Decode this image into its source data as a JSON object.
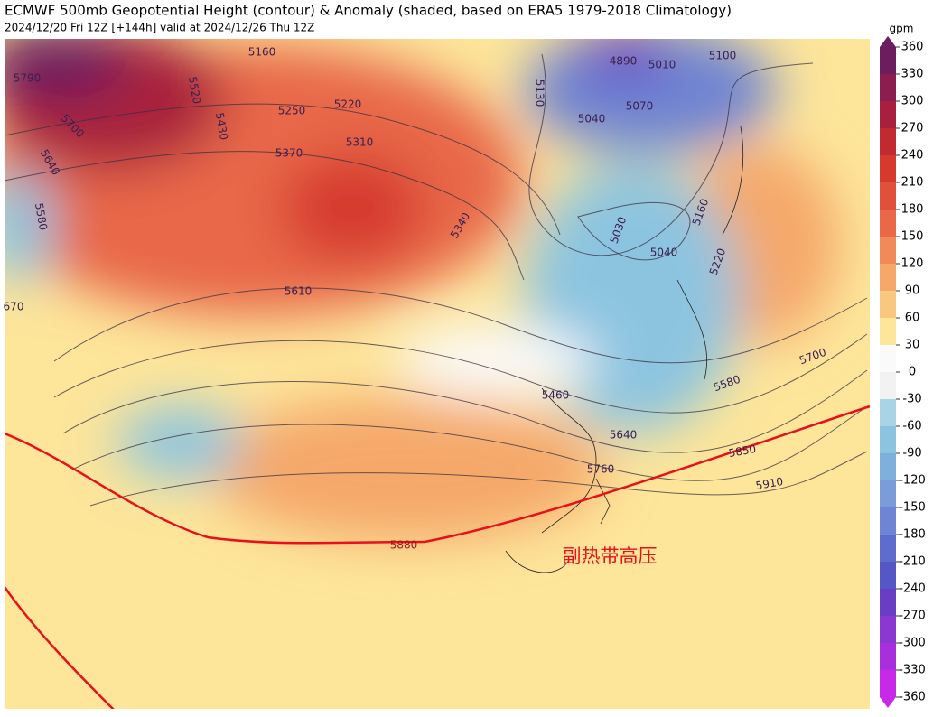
{
  "title": "ECMWF 500mb Geopotential Height (contour) & Anomaly (shaded, based on ERA5 1979-2018 Climatology)",
  "subtitle": "2024/12/20 Fri 12Z [+144h] valid at 2024/12/26 Thu 12Z",
  "colorbar": {
    "unit": "gpm",
    "lim": [
      -360,
      360
    ],
    "ticks": [
      360,
      330,
      300,
      270,
      240,
      210,
      180,
      150,
      120,
      90,
      60,
      30,
      0,
      -30,
      -60,
      -90,
      -120,
      -150,
      -180,
      -210,
      -240,
      -270,
      -300,
      -330,
      -360
    ],
    "colors": [
      "#6b1d5e",
      "#8b1e4f",
      "#a8203e",
      "#c02a30",
      "#d63a2e",
      "#e0503a",
      "#e86848",
      "#f08a5a",
      "#f5a86a",
      "#f8c880",
      "#fde59a",
      "#fafafa",
      "#f2f2f2",
      "#a8d4e6",
      "#8cc4e0",
      "#7fb0dc",
      "#7b9cd8",
      "#6f84d2",
      "#5f6ccc",
      "#5558c4",
      "#6a3ec4",
      "#8a38d0",
      "#a830dc",
      "#c828e8"
    ]
  },
  "contour_labels": [
    5790,
    5160,
    5250,
    5220,
    5130,
    4890,
    5010,
    5100,
    5040,
    5070,
    5520,
    5430,
    5700,
    5640,
    5310,
    5370,
    5580,
    5340,
    5030,
    5040,
    5160,
    5220,
    5610,
    5700,
    5580,
    5460,
    5640,
    5760,
    5850,
    5910,
    670
  ],
  "highlight_contour": 5880,
  "annotation": "副热带高压"
}
